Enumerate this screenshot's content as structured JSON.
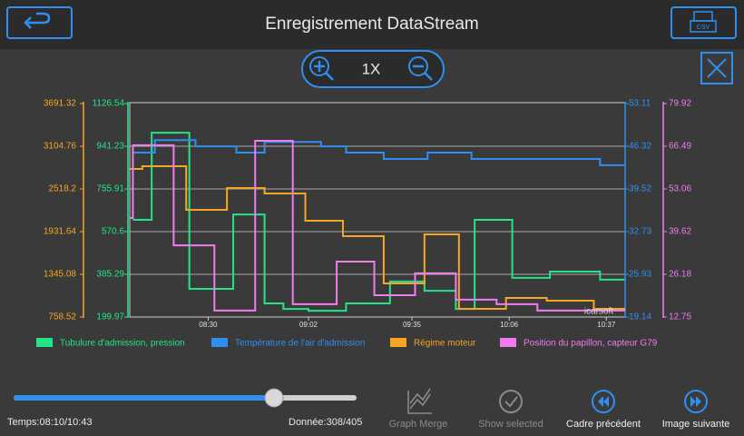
{
  "header": {
    "title": "Enregistrement DataStream",
    "csv_label": "CSV"
  },
  "zoom": {
    "level": "1X"
  },
  "chart_data": {
    "type": "line",
    "step": true,
    "watermark": "icarsoft",
    "xlim": [
      485,
      643
    ],
    "xticks": [
      {
        "value": 510,
        "label": "08:30"
      },
      {
        "value": 542,
        "label": "09:02"
      },
      {
        "value": 575,
        "label": "09:35"
      },
      {
        "value": 606,
        "label": "10:06"
      },
      {
        "value": 637,
        "label": "10:37"
      }
    ],
    "grid": true,
    "series": [
      {
        "name": "Tubulure d'admission, pression",
        "color": "#22e58a",
        "ylim": [
          199.97,
          1126.54
        ],
        "yticks": [
          199.97,
          385.29,
          570.6,
          755.91,
          941.23,
          1126.54
        ],
        "x": [
          486,
          492,
          504,
          518,
          528,
          534,
          542,
          554,
          568,
          579,
          589,
          595,
          607,
          619,
          635
        ],
        "values": [
          622,
          1000,
          322,
          645,
          259,
          235,
          227,
          259,
          354,
          314,
          235,
          622,
          370,
          397,
          362
        ]
      },
      {
        "name": "Température de l'air d'admission",
        "color": "#2f8ff0",
        "ylim": [
          19.14,
          53.11
        ],
        "yticks": [
          19.14,
          25.93,
          32.73,
          39.52,
          46.32,
          53.11
        ],
        "x": [
          486,
          493,
          506,
          519,
          528,
          546,
          554,
          566,
          580,
          594,
          635
        ],
        "values": [
          45.3,
          47.3,
          46.3,
          45.3,
          47.0,
          46.3,
          45.3,
          44.3,
          45.3,
          44.3,
          43.3
        ]
      },
      {
        "name": "Régime moteur",
        "color": "#f5a623",
        "ylim": [
          758.52,
          3691.32
        ],
        "yticks": [
          758.52,
          1345.08,
          1931.64,
          2518.2,
          3104.76,
          3691.32
        ],
        "x": [
          485,
          489,
          503,
          516,
          528,
          541,
          553,
          566,
          579,
          590,
          605,
          618,
          633
        ],
        "values": [
          2793,
          2830,
          2231,
          2531,
          2456,
          2082,
          1870,
          1220,
          1894,
          871,
          1021,
          983,
          871
        ]
      },
      {
        "name": "Position du papillon, capteur G79",
        "color": "#f07cf0",
        "ylim": [
          12.75,
          79.92
        ],
        "yticks": [
          12.75,
          26.18,
          39.62,
          53.06,
          66.49,
          79.92
        ],
        "x": [
          485,
          486,
          499,
          512,
          525,
          537,
          551,
          563,
          576,
          589,
          602,
          615
        ],
        "values": [
          43.9,
          66.8,
          35.3,
          14.8,
          68.2,
          16.8,
          30.2,
          19.6,
          26.5,
          18.2,
          16.8,
          14.8
        ]
      }
    ]
  },
  "footer": {
    "time": "Temps:08:10/10:43",
    "data": "Donnée:308/405",
    "buttons": [
      "Graph Merge",
      "Show selected",
      "Cadre précédent",
      "Image suivante"
    ]
  }
}
